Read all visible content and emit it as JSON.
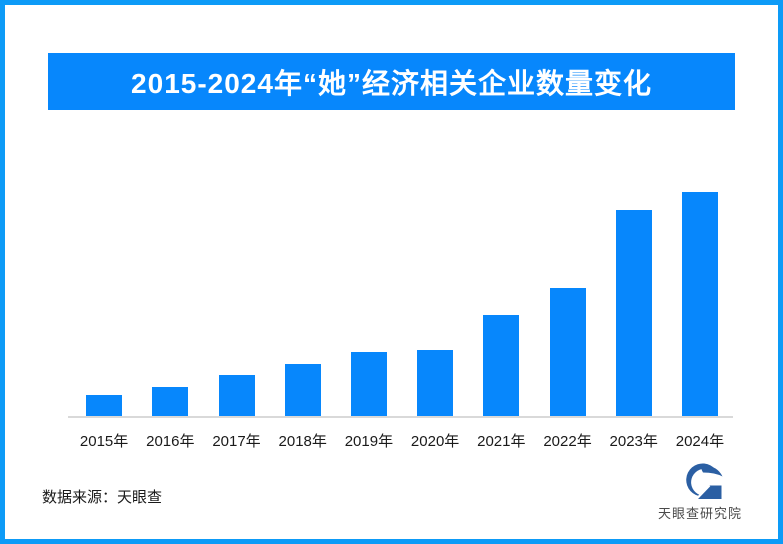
{
  "page": {
    "frame_border_color": "#0D9BF7",
    "background_color": "#FFFFFF"
  },
  "title_banner": {
    "text": "2015-2024年“她”经济相关企业数量变化",
    "bg_color": "#0787FC",
    "text_color": "#FFFFFF"
  },
  "chart_data": {
    "type": "bar",
    "title": "2015-2024年“她”经济相关企业数量变化",
    "categories": [
      "2015年",
      "2016年",
      "2017年",
      "2018年",
      "2019年",
      "2020年",
      "2021年",
      "2022年",
      "2023年",
      "2024年"
    ],
    "values": [
      9.8,
      13.4,
      18.5,
      23.6,
      28.9,
      29.9,
      45.4,
      57.4,
      92.1,
      100
    ],
    "value_unit": "relative bar height, max = 100 (no numeric axis or data labels shown)",
    "xlabel": "",
    "ylabel": "",
    "ylim": [
      0,
      100
    ],
    "grid": false,
    "legend": false,
    "bar_color": "#0787FC",
    "axis_line_color": "#D9D9D9"
  },
  "footer": {
    "source_text": "数据来源：天眼查",
    "logo_text": "天眼查研究院",
    "logo_color": "#2B5FA3"
  }
}
